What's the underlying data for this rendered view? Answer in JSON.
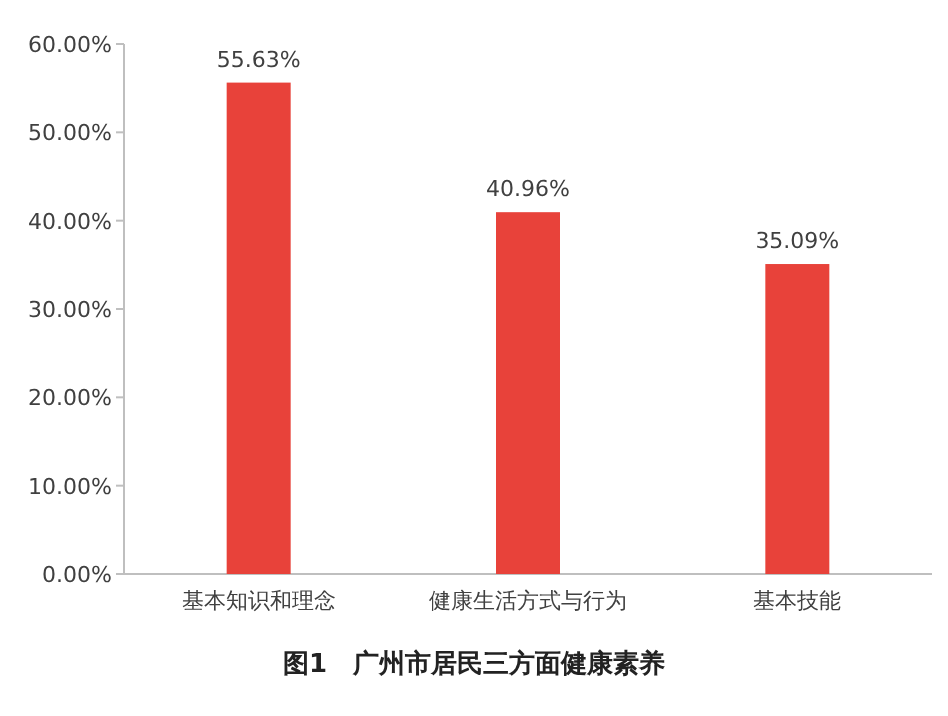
{
  "chart_data": {
    "type": "bar",
    "title": "图1　广州市居民三方面健康素养",
    "categories": [
      "基本知识和理念",
      "健康生活方式与行为",
      "基本技能"
    ],
    "values": [
      55.63,
      40.96,
      35.09
    ],
    "value_labels": [
      "55.63%",
      "40.96%",
      "35.09%"
    ],
    "color": "#e8423a",
    "ylim": [
      0,
      60
    ],
    "yticks": [
      {
        "value": 0,
        "label": "0.00%"
      },
      {
        "value": 10,
        "label": "10.00%"
      },
      {
        "value": 20,
        "label": "20.00%"
      },
      {
        "value": 30,
        "label": "30.00%"
      },
      {
        "value": 40,
        "label": "40.00%"
      },
      {
        "value": 50,
        "label": "50.00%"
      },
      {
        "value": 60,
        "label": "60.00%"
      }
    ]
  }
}
